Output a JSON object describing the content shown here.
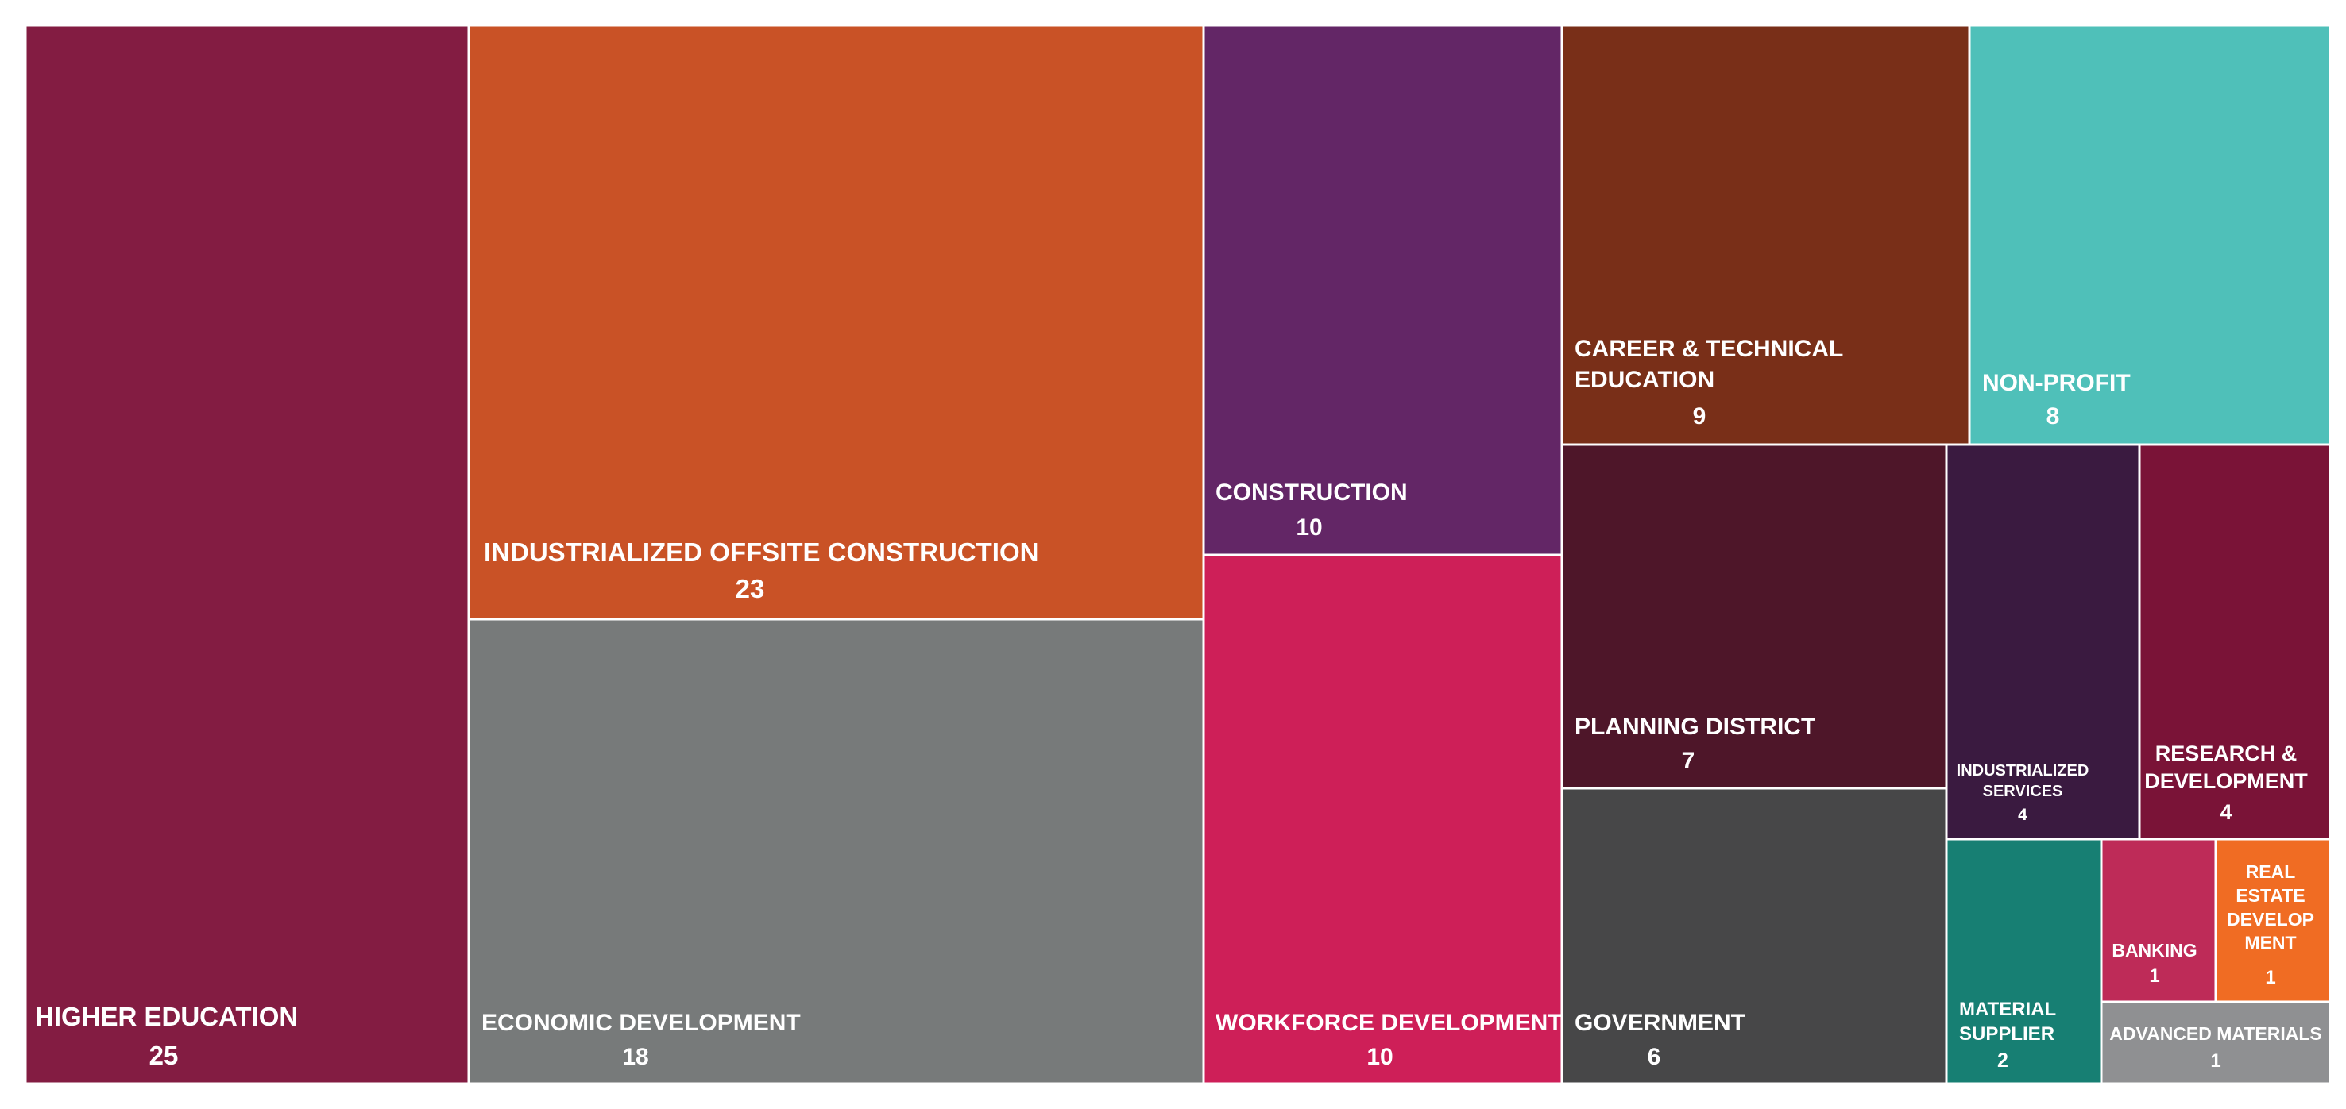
{
  "chart_data": {
    "type": "treemap",
    "title": "",
    "items": [
      {
        "name": "HIGHER EDUCATION",
        "value": 25,
        "color": "#831C42"
      },
      {
        "name": "INDUSTRIALIZED OFFSITE CONSTRUCTION",
        "value": 23,
        "color": "#C95226"
      },
      {
        "name": "ECONOMIC DEVELOPMENT",
        "value": 18,
        "color": "#777A7A"
      },
      {
        "name": "CONSTRUCTION",
        "value": 10,
        "color": "#632666"
      },
      {
        "name": "WORKFORCE DEVELOPMENT",
        "value": 10,
        "color": "#CE1F58"
      },
      {
        "name": "CAREER & TECHNICAL EDUCATION",
        "value": 9,
        "color": "#792F18"
      },
      {
        "name": "NON-PROFIT",
        "value": 8,
        "color": "#4FC0B9"
      },
      {
        "name": "PLANNING DISTRICT",
        "value": 7,
        "color": "#4E1629"
      },
      {
        "name": "GOVERNMENT",
        "value": 6,
        "color": "#474748"
      },
      {
        "name": "INDUSTRIALIZED SERVICES",
        "value": 4,
        "color": "#3A1A40"
      },
      {
        "name": "RESEARCH & DEVELOPMENT",
        "value": 4,
        "color": "#7A1337"
      },
      {
        "name": "MATERIAL SUPPLIER",
        "value": 2,
        "color": "#177F73"
      },
      {
        "name": "BANKING",
        "value": 1,
        "color": "#BE2B58"
      },
      {
        "name": "REAL ESTATE DEVELOPMENT",
        "value": 1,
        "color": "#F06C23"
      },
      {
        "name": "ADVANCED MATERIALS",
        "value": 1,
        "color": "#8F9092"
      }
    ]
  }
}
